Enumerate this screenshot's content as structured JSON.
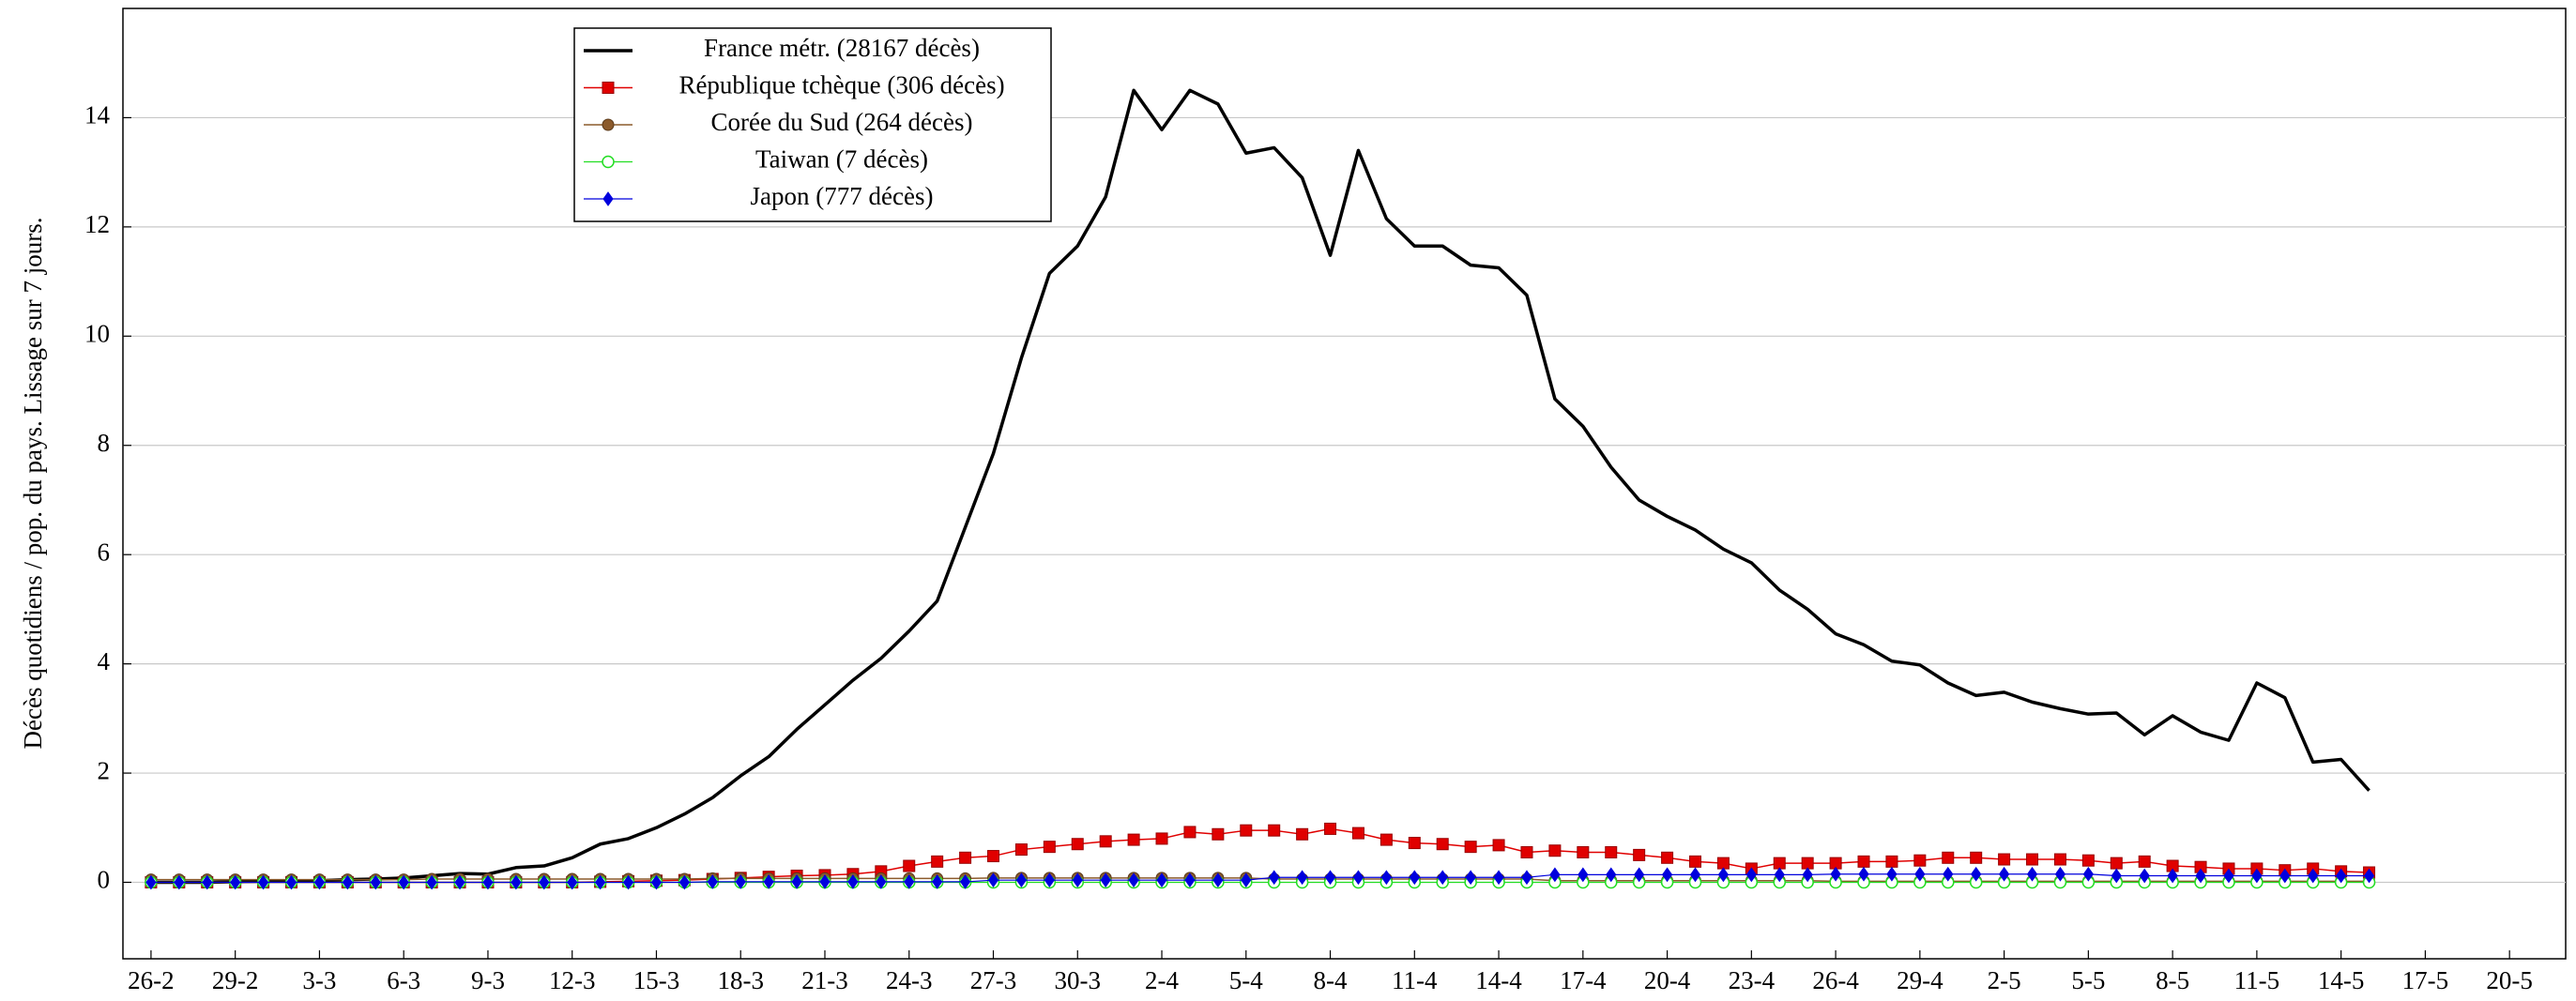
{
  "chart_data": {
    "type": "line",
    "y_label": "Décès quotidiens / pop. du pays. Lissage sur 7 jours.",
    "xlim": [
      -1,
      86
    ],
    "ylim": [
      -1.4,
      16
    ],
    "yticks": [
      0,
      2,
      4,
      6,
      8,
      10,
      12,
      14
    ],
    "xticks": [
      {
        "value": 0,
        "label": "26-2"
      },
      {
        "value": 3,
        "label": "29-2"
      },
      {
        "value": 6,
        "label": "3-3"
      },
      {
        "value": 9,
        "label": "6-3"
      },
      {
        "value": 12,
        "label": "9-3"
      },
      {
        "value": 15,
        "label": "12-3"
      },
      {
        "value": 18,
        "label": "15-3"
      },
      {
        "value": 21,
        "label": "18-3"
      },
      {
        "value": 24,
        "label": "21-3"
      },
      {
        "value": 27,
        "label": "24-3"
      },
      {
        "value": 30,
        "label": "27-3"
      },
      {
        "value": 33,
        "label": "30-3"
      },
      {
        "value": 36,
        "label": "2-4"
      },
      {
        "value": 39,
        "label": "5-4"
      },
      {
        "value": 42,
        "label": "8-4"
      },
      {
        "value": 45,
        "label": "11-4"
      },
      {
        "value": 48,
        "label": "14-4"
      },
      {
        "value": 51,
        "label": "17-4"
      },
      {
        "value": 54,
        "label": "20-4"
      },
      {
        "value": 57,
        "label": "23-4"
      },
      {
        "value": 60,
        "label": "26-4"
      },
      {
        "value": 63,
        "label": "29-4"
      },
      {
        "value": 66,
        "label": "2-5"
      },
      {
        "value": 69,
        "label": "5-5"
      },
      {
        "value": 72,
        "label": "8-5"
      },
      {
        "value": 75,
        "label": "11-5"
      },
      {
        "value": 78,
        "label": "14-5"
      },
      {
        "value": 81,
        "label": "17-5"
      },
      {
        "value": 84,
        "label": "20-5"
      }
    ],
    "grid": true,
    "legend": "upper left",
    "x": [
      0,
      1,
      2,
      3,
      4,
      5,
      6,
      7,
      8,
      9,
      10,
      11,
      12,
      13,
      14,
      15,
      16,
      17,
      18,
      19,
      20,
      21,
      22,
      23,
      24,
      25,
      26,
      27,
      28,
      29,
      30,
      31,
      32,
      33,
      34,
      35,
      36,
      37,
      38,
      39,
      40,
      41,
      42,
      43,
      44,
      45,
      46,
      47,
      48,
      49,
      50,
      51,
      52,
      53,
      54,
      55,
      56,
      57,
      58,
      59,
      60,
      61,
      62,
      63,
      64,
      65,
      66,
      67,
      68,
      69,
      70,
      71,
      72,
      73,
      74,
      75,
      76,
      77,
      78,
      79
    ],
    "series": [
      {
        "name": "France métr. (28167 décès)",
        "color": "#000000",
        "marker": "none",
        "line_width": 3.5,
        "values": [
          0,
          0,
          0,
          0.01,
          0.02,
          0.02,
          0.03,
          0.05,
          0.06,
          0.08,
          0.12,
          0.16,
          0.15,
          0.27,
          0.3,
          0.45,
          0.7,
          0.8,
          1.0,
          1.25,
          1.55,
          1.95,
          2.3,
          2.8,
          3.25,
          3.7,
          4.1,
          4.6,
          5.15,
          6.5,
          7.85,
          9.6,
          11.15,
          11.65,
          12.55,
          14.5,
          13.78,
          14.5,
          14.25,
          13.35,
          13.45,
          12.9,
          11.48,
          13.4,
          12.15,
          11.65,
          11.65,
          11.3,
          11.25,
          10.75,
          8.85,
          8.35,
          7.6,
          7.0,
          6.7,
          6.45,
          6.1,
          5.85,
          5.35,
          5.0,
          4.55,
          4.35,
          4.05,
          3.98,
          3.65,
          3.42,
          3.48,
          3.3,
          3.18,
          3.08,
          3.1,
          2.7,
          3.05,
          2.75,
          2.6,
          3.65,
          3.38,
          2.2,
          2.25,
          1.68
        ]
      },
      {
        "name": "République tchèque (306 décès)",
        "color": "#e00000",
        "marker": "square",
        "line_width": 1.5,
        "values": [
          0,
          0,
          0,
          0,
          0,
          0,
          0,
          0,
          0,
          0,
          0,
          0,
          0,
          0,
          0,
          0,
          0.01,
          0.02,
          0.03,
          0.04,
          0.06,
          0.08,
          0.1,
          0.12,
          0.13,
          0.15,
          0.2,
          0.3,
          0.38,
          0.45,
          0.48,
          0.6,
          0.65,
          0.7,
          0.75,
          0.78,
          0.8,
          0.92,
          0.88,
          0.95,
          0.95,
          0.88,
          0.98,
          0.9,
          0.78,
          0.72,
          0.7,
          0.65,
          0.68,
          0.55,
          0.58,
          0.55,
          0.55,
          0.5,
          0.45,
          0.38,
          0.35,
          0.25,
          0.35,
          0.35,
          0.35,
          0.38,
          0.38,
          0.4,
          0.45,
          0.45,
          0.42,
          0.42,
          0.42,
          0.4,
          0.35,
          0.38,
          0.3,
          0.28,
          0.25,
          0.25,
          0.22,
          0.25,
          0.2,
          0.18
        ]
      },
      {
        "name": "Corée du Sud (264 décès)",
        "color": "#8b5a2b",
        "marker": "circle",
        "line_width": 1.5,
        "values": [
          0.05,
          0.05,
          0.05,
          0.05,
          0.05,
          0.05,
          0.05,
          0.05,
          0.05,
          0.05,
          0.06,
          0.06,
          0.06,
          0.06,
          0.06,
          0.06,
          0.06,
          0.06,
          0.06,
          0.06,
          0.07,
          0.07,
          0.07,
          0.07,
          0.07,
          0.07,
          0.07,
          0.07,
          0.07,
          0.07,
          0.08,
          0.08,
          0.08,
          0.08,
          0.08,
          0.08,
          0.08,
          0.08,
          0.08,
          0.08,
          0.06,
          0.06,
          0.06,
          0.06,
          0.06,
          0.06,
          0.06,
          0.06,
          0.06,
          0.06,
          0.03,
          0.03,
          0.03,
          0.03,
          0.03,
          0.03,
          0.03,
          0.03,
          0.03,
          0.03,
          0.02,
          0.02,
          0.02,
          0.02,
          0.02,
          0.02,
          0.02,
          0.02,
          0.02,
          0.02,
          0.02,
          0.02,
          0.02,
          0.02,
          0.02,
          0.02,
          0.02,
          0.02,
          0.02,
          0.02
        ]
      },
      {
        "name": "Taiwan (7 décès)",
        "color": "#22dd22",
        "marker": "open-circle",
        "line_width": 1.2,
        "values": [
          0,
          0,
          0,
          0,
          0,
          0,
          0,
          0,
          0,
          0,
          0,
          0,
          0,
          0,
          0,
          0,
          0,
          0,
          0,
          0,
          0,
          0,
          0,
          0,
          0,
          0,
          0,
          0,
          0,
          0,
          0,
          0,
          0,
          0,
          0,
          0,
          0,
          0,
          0,
          0,
          0,
          0,
          0,
          0,
          0,
          0,
          0,
          0,
          0,
          0,
          0,
          0,
          0,
          0,
          0,
          0,
          0,
          0,
          0,
          0,
          0,
          0,
          0,
          0,
          0,
          0,
          0,
          0,
          0,
          0,
          0,
          0,
          0,
          0,
          0,
          0,
          0,
          0,
          0,
          0
        ]
      },
      {
        "name": "Japon (777 décès)",
        "color": "#0000dd",
        "marker": "diamond",
        "line_width": 1.2,
        "values": [
          0,
          0,
          0,
          0,
          0,
          0,
          0,
          0,
          0,
          0,
          0,
          0,
          0,
          0,
          0,
          0,
          0,
          0,
          0,
          0,
          0.01,
          0.01,
          0.01,
          0.01,
          0.01,
          0.01,
          0.01,
          0.01,
          0.01,
          0.01,
          0.04,
          0.04,
          0.04,
          0.04,
          0.04,
          0.04,
          0.04,
          0.04,
          0.04,
          0.04,
          0.09,
          0.09,
          0.09,
          0.09,
          0.09,
          0.09,
          0.09,
          0.09,
          0.09,
          0.09,
          0.14,
          0.14,
          0.14,
          0.14,
          0.14,
          0.14,
          0.14,
          0.14,
          0.14,
          0.14,
          0.15,
          0.15,
          0.15,
          0.15,
          0.15,
          0.15,
          0.15,
          0.15,
          0.15,
          0.15,
          0.12,
          0.12,
          0.12,
          0.12,
          0.12,
          0.12,
          0.12,
          0.12,
          0.12,
          0.12
        ]
      }
    ]
  }
}
